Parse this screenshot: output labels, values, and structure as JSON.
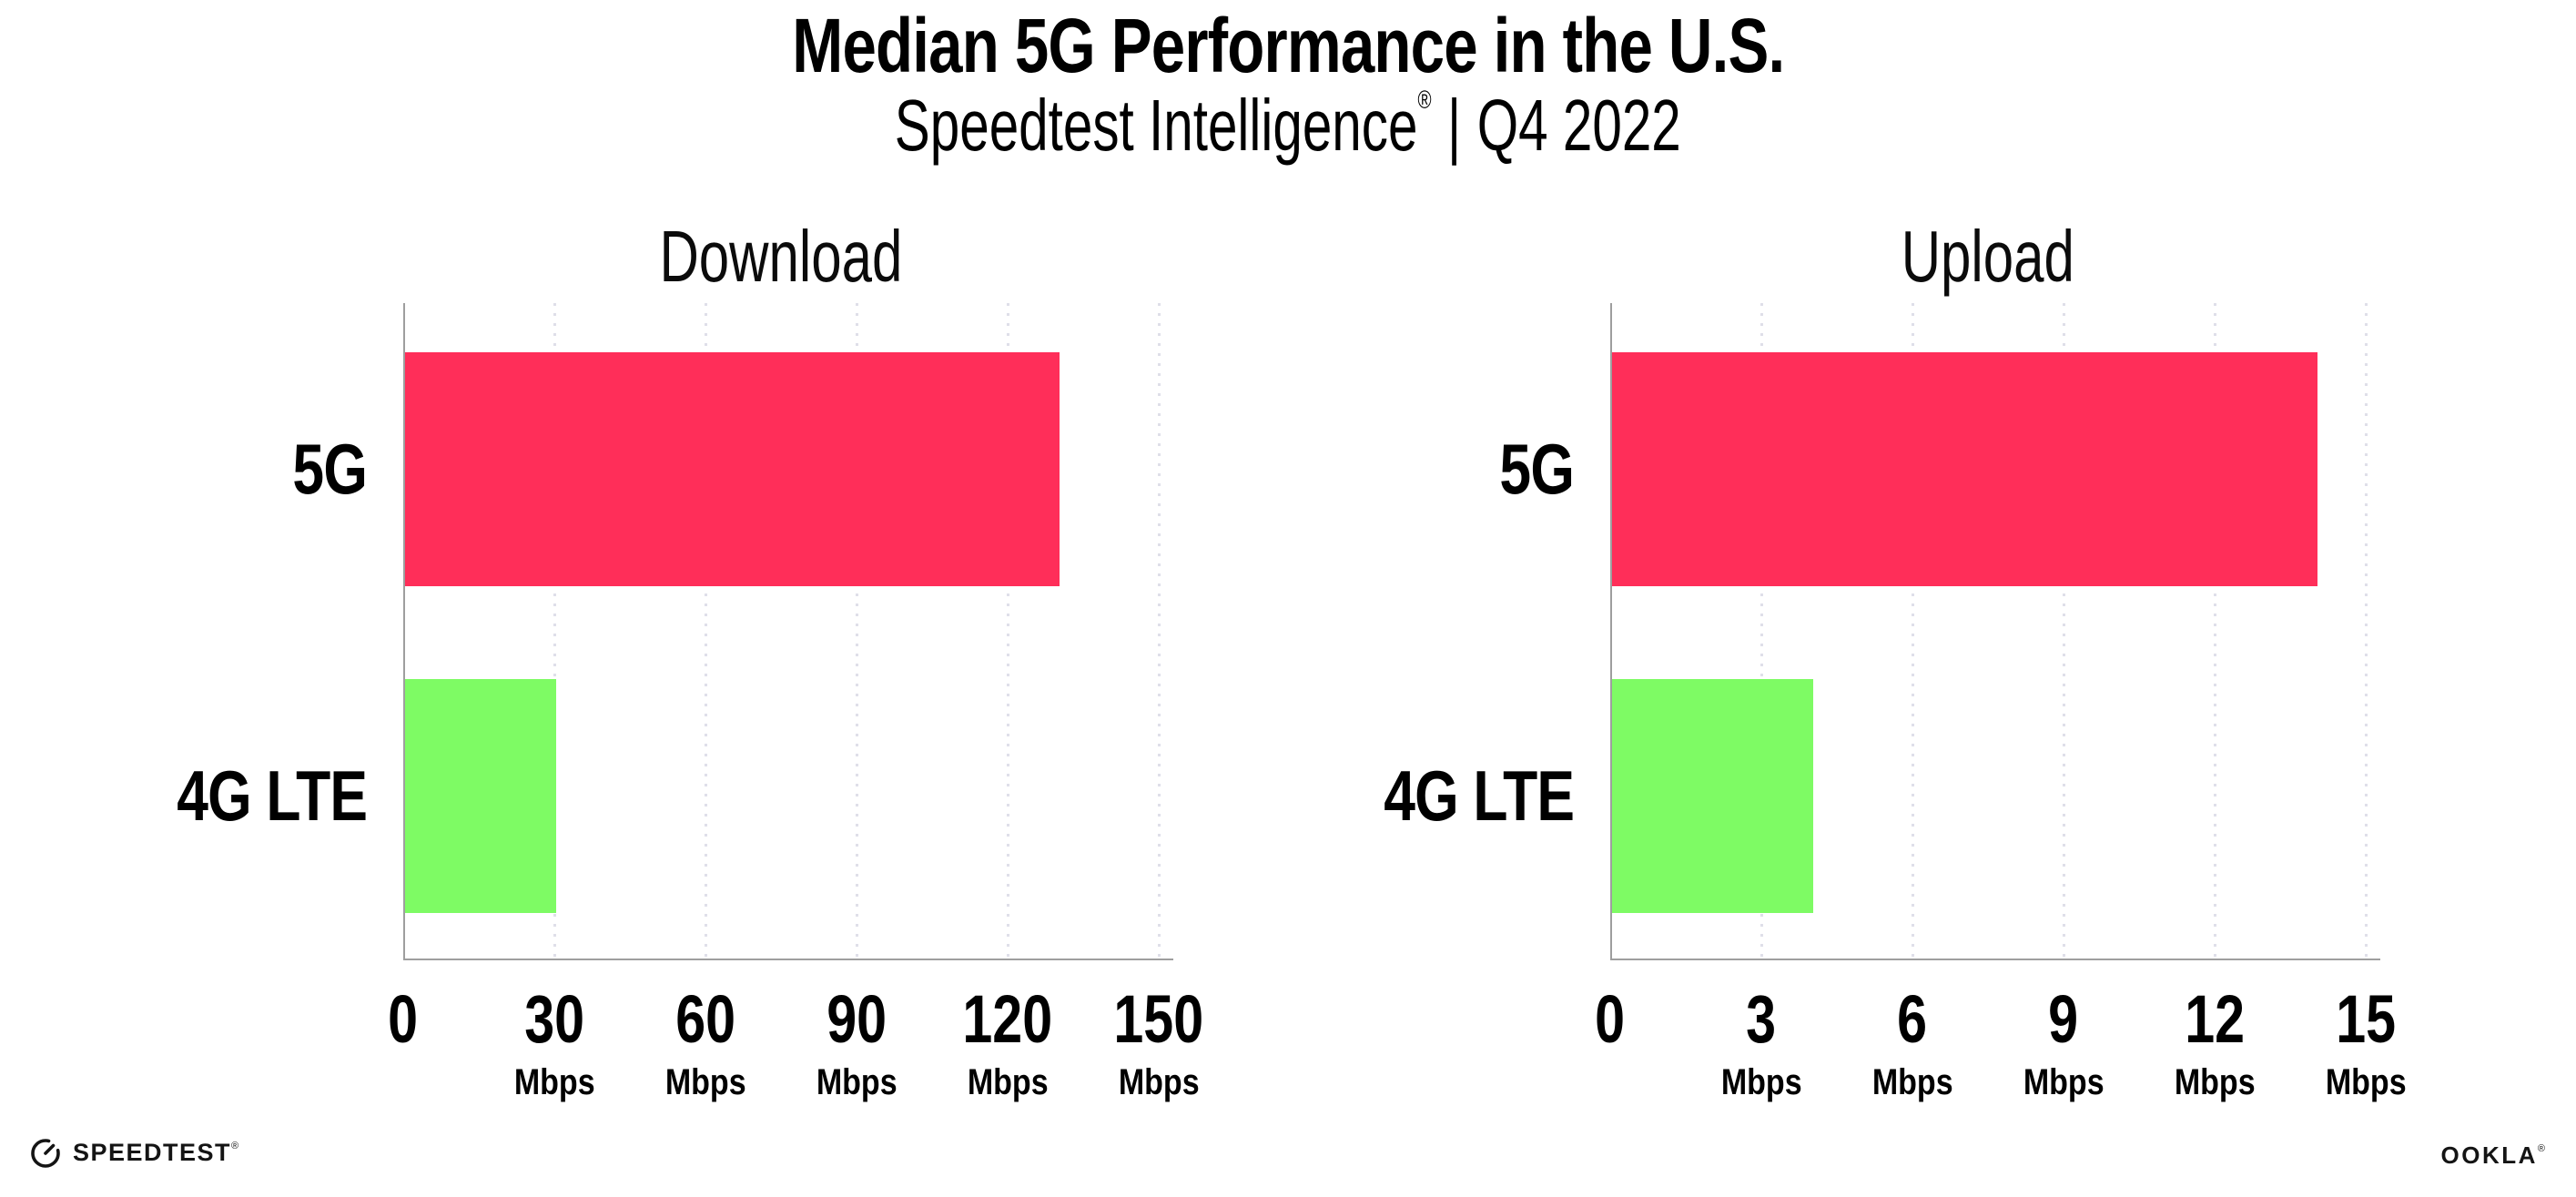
{
  "header": {
    "title": "Median 5G Performance in the U.S.",
    "subtitle_brand": "Speedtest Intelligence",
    "subtitle_reg": "®",
    "subtitle_separator": "|",
    "subtitle_period": "Q4 2022"
  },
  "chart_data": [
    {
      "type": "bar",
      "orientation": "horizontal",
      "title": "Download",
      "categories": [
        "5G",
        "4G LTE"
      ],
      "values": [
        130,
        30
      ],
      "unit": "Mbps",
      "xlim": [
        0,
        150
      ],
      "xticks": [
        0,
        30,
        60,
        90,
        120,
        150
      ],
      "tick_unit": "Mbps",
      "bar_colors": [
        "#FF2E59",
        "#7EFB64"
      ],
      "grid": "dotted-vertical-light",
      "legend": "none"
    },
    {
      "type": "bar",
      "orientation": "horizontal",
      "title": "Upload",
      "categories": [
        "5G",
        "4G LTE"
      ],
      "values": [
        14,
        4
      ],
      "unit": "Mbps",
      "xlim": [
        0,
        15
      ],
      "xticks": [
        0,
        3,
        6,
        9,
        12,
        15
      ],
      "tick_unit": "Mbps",
      "bar_colors": [
        "#FF2E59",
        "#7EFB64"
      ],
      "grid": "dotted-vertical-light",
      "legend": "none"
    }
  ],
  "footer": {
    "speedtest_icon": "speedometer-gauge-icon",
    "speedtest_label": "SPEEDTEST",
    "speedtest_reg": "®",
    "ookla_label": "OOKLA",
    "ookla_reg": "®"
  },
  "colors": {
    "bar_5g": "#FF2E59",
    "bar_4g_lte": "#7EFB64",
    "axis": "#9E9E9E",
    "gridline": "#DFDFE9",
    "text": "#000000",
    "logo": "#141414",
    "background": "#FFFFFF"
  }
}
